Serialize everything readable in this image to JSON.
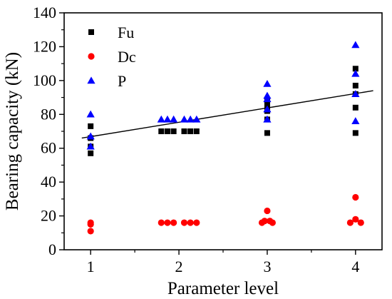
{
  "chart_data": {
    "type": "scatter",
    "xlabel": "Parameter level",
    "ylabel": "Bearing capacity (kN)",
    "xlim": [
      0.7,
      4.3
    ],
    "ylim": [
      0,
      140
    ],
    "xticks": [
      1,
      2,
      3,
      4
    ],
    "yticks": [
      0,
      20,
      40,
      60,
      80,
      100,
      120,
      140
    ],
    "legend_position": "top-left",
    "grid": false,
    "series": [
      {
        "name": "Fu",
        "marker": "square",
        "color": "#000000",
        "points": [
          [
            1,
            57
          ],
          [
            1,
            61
          ],
          [
            1,
            66
          ],
          [
            1,
            73
          ],
          [
            1.8,
            70
          ],
          [
            1.87,
            70
          ],
          [
            1.94,
            70
          ],
          [
            2.06,
            70
          ],
          [
            2.13,
            70
          ],
          [
            2.2,
            70
          ],
          [
            3,
            69
          ],
          [
            3,
            77
          ],
          [
            3,
            82
          ],
          [
            3,
            85
          ],
          [
            3,
            88
          ],
          [
            4,
            69
          ],
          [
            4,
            84
          ],
          [
            4,
            92
          ],
          [
            4,
            97
          ],
          [
            4,
            107
          ]
        ]
      },
      {
        "name": "Dc",
        "marker": "circle",
        "color": "#ff0000",
        "points": [
          [
            1,
            11
          ],
          [
            1,
            15
          ],
          [
            1,
            16
          ],
          [
            1.8,
            16
          ],
          [
            1.87,
            16
          ],
          [
            1.94,
            16
          ],
          [
            2.06,
            16
          ],
          [
            2.13,
            16
          ],
          [
            2.2,
            16
          ],
          [
            2.94,
            16
          ],
          [
            2.97,
            17
          ],
          [
            3,
            23
          ],
          [
            3.03,
            17
          ],
          [
            3.06,
            16
          ],
          [
            3.94,
            16
          ],
          [
            4,
            18
          ],
          [
            4,
            31
          ],
          [
            4.06,
            16
          ]
        ]
      },
      {
        "name": "P",
        "marker": "triangle",
        "color": "#0000ff",
        "points": [
          [
            1,
            61
          ],
          [
            1,
            67
          ],
          [
            1,
            80
          ],
          [
            1.8,
            77
          ],
          [
            1.87,
            77
          ],
          [
            1.94,
            77
          ],
          [
            2.06,
            77
          ],
          [
            2.13,
            77
          ],
          [
            2.2,
            77
          ],
          [
            3,
            77
          ],
          [
            3,
            83
          ],
          [
            3,
            89
          ],
          [
            3,
            91
          ],
          [
            3,
            98
          ],
          [
            4,
            76
          ],
          [
            4,
            92
          ],
          [
            4,
            104
          ],
          [
            4,
            121
          ]
        ]
      }
    ],
    "fit_line": {
      "color": "#000000",
      "x": [
        0.9,
        4.2
      ],
      "y": [
        66,
        94
      ]
    }
  }
}
